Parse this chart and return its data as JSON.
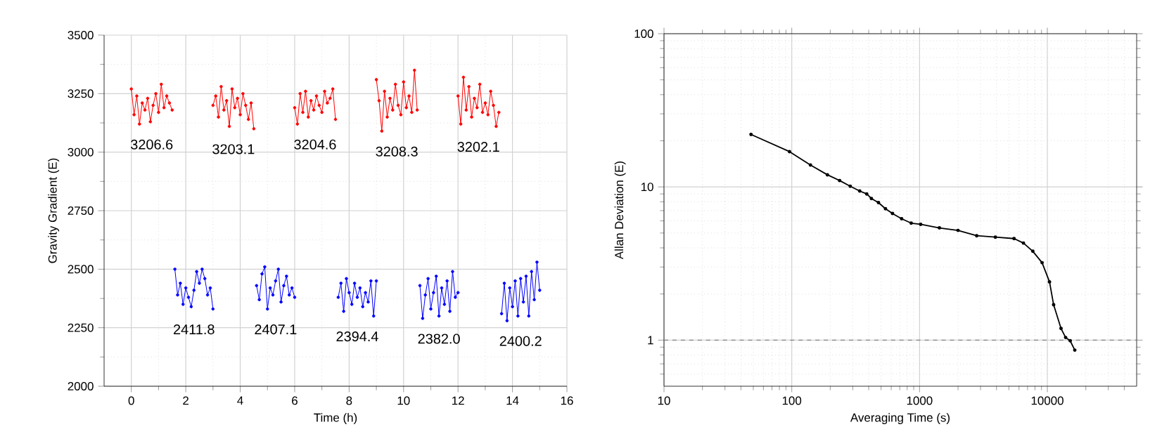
{
  "chart_data": [
    {
      "type": "line",
      "xlabel": "Time (h)",
      "ylabel": "Gravity Gradient (E)",
      "xlim": [
        -1,
        16
      ],
      "ylim": [
        2000,
        3500
      ],
      "xticks": [
        0,
        2,
        4,
        6,
        8,
        10,
        12,
        14,
        16
      ],
      "yticks": [
        2000,
        2250,
        2500,
        2750,
        3000,
        3250,
        3500
      ],
      "grid": true,
      "marker": "circle",
      "series": [
        {
          "color": "#ff0000",
          "x": [
            0.0,
            0.1,
            0.2,
            0.3,
            0.4,
            0.5,
            0.6,
            0.7,
            0.8,
            0.9,
            1.0,
            1.1,
            1.2,
            1.3,
            1.4,
            1.5
          ],
          "values": [
            3270,
            3160,
            3240,
            3120,
            3210,
            3180,
            3230,
            3130,
            3200,
            3250,
            3170,
            3290,
            3190,
            3240,
            3210,
            3180
          ]
        },
        {
          "color": "#ff0000",
          "x": [
            3.0,
            3.1,
            3.2,
            3.3,
            3.4,
            3.5,
            3.6,
            3.7,
            3.8,
            3.9,
            4.0,
            4.1,
            4.2,
            4.3,
            4.4,
            4.5
          ],
          "values": [
            3200,
            3240,
            3150,
            3280,
            3180,
            3220,
            3110,
            3270,
            3190,
            3230,
            3160,
            3250,
            3200,
            3140,
            3210,
            3100
          ]
        },
        {
          "color": "#ff0000",
          "x": [
            6.0,
            6.1,
            6.2,
            6.3,
            6.4,
            6.5,
            6.6,
            6.7,
            6.8,
            6.9,
            7.0,
            7.1,
            7.2,
            7.3,
            7.4,
            7.5
          ],
          "values": [
            3190,
            3120,
            3250,
            3170,
            3260,
            3150,
            3220,
            3180,
            3240,
            3200,
            3170,
            3260,
            3210,
            3230,
            3270,
            3140
          ]
        },
        {
          "color": "#ff0000",
          "x": [
            9.0,
            9.1,
            9.2,
            9.3,
            9.4,
            9.5,
            9.6,
            9.7,
            9.8,
            9.9,
            10.0,
            10.1,
            10.2,
            10.3,
            10.4,
            10.5
          ],
          "values": [
            3310,
            3220,
            3090,
            3260,
            3150,
            3230,
            3180,
            3290,
            3200,
            3160,
            3300,
            3190,
            3240,
            3170,
            3350,
            3180
          ]
        },
        {
          "color": "#ff0000",
          "x": [
            12.0,
            12.1,
            12.2,
            12.3,
            12.4,
            12.5,
            12.6,
            12.7,
            12.8,
            12.9,
            13.0,
            13.1,
            13.2,
            13.3,
            13.4,
            13.5
          ],
          "values": [
            3240,
            3120,
            3320,
            3180,
            3280,
            3150,
            3230,
            3190,
            3290,
            3170,
            3210,
            3160,
            3260,
            3200,
            3110,
            3170
          ]
        },
        {
          "color": "#0000ff",
          "x": [
            1.6,
            1.7,
            1.8,
            1.9,
            2.0,
            2.1,
            2.2,
            2.3,
            2.4,
            2.5,
            2.6,
            2.7,
            2.8,
            2.9,
            3.0
          ],
          "values": [
            2500,
            2390,
            2440,
            2350,
            2420,
            2380,
            2340,
            2410,
            2490,
            2440,
            2500,
            2460,
            2390,
            2420,
            2330
          ]
        },
        {
          "color": "#0000ff",
          "x": [
            4.6,
            4.7,
            4.8,
            4.9,
            5.0,
            5.1,
            5.2,
            5.3,
            5.4,
            5.5,
            5.6,
            5.7,
            5.8,
            5.9,
            6.0
          ],
          "values": [
            2430,
            2370,
            2480,
            2510,
            2330,
            2420,
            2390,
            2450,
            2500,
            2360,
            2430,
            2470,
            2390,
            2420,
            2380
          ]
        },
        {
          "color": "#0000ff",
          "x": [
            7.6,
            7.7,
            7.8,
            7.9,
            8.0,
            8.1,
            8.2,
            8.3,
            8.4,
            8.5,
            8.6,
            8.7,
            8.8,
            8.9,
            9.0
          ],
          "values": [
            2380,
            2440,
            2320,
            2460,
            2400,
            2350,
            2440,
            2380,
            2420,
            2340,
            2400,
            2360,
            2450,
            2300,
            2450
          ]
        },
        {
          "color": "#0000ff",
          "x": [
            10.6,
            10.7,
            10.8,
            10.9,
            11.0,
            11.1,
            11.2,
            11.3,
            11.4,
            11.5,
            11.6,
            11.7,
            11.8,
            11.9,
            12.0
          ],
          "values": [
            2430,
            2290,
            2390,
            2460,
            2330,
            2400,
            2470,
            2300,
            2420,
            2350,
            2450,
            2320,
            2490,
            2380,
            2400
          ]
        },
        {
          "color": "#0000ff",
          "x": [
            13.6,
            13.7,
            13.8,
            13.9,
            14.0,
            14.1,
            14.2,
            14.3,
            14.4,
            14.5,
            14.6,
            14.7,
            14.8,
            14.9,
            15.0
          ],
          "values": [
            2310,
            2440,
            2280,
            2420,
            2340,
            2450,
            2300,
            2460,
            2360,
            2470,
            2300,
            2490,
            2370,
            2530,
            2410
          ]
        }
      ],
      "annotations": [
        "3206.6",
        "3203.1",
        "3204.6",
        "3208.3",
        "3202.1",
        "2411.8",
        "2407.1",
        "2394.4",
        "2382.0",
        "2400.2"
      ]
    },
    {
      "type": "line",
      "xlabel": "Averaging Time (s)",
      "ylabel": "Allan Deviation (E)",
      "log": "xy",
      "xlim": [
        10,
        50000
      ],
      "ylim": [
        0.5,
        100
      ],
      "xticks": [
        10,
        100,
        1000,
        10000
      ],
      "yticks": [
        1,
        10,
        100
      ],
      "grid": true,
      "marker": "circle",
      "series": [
        {
          "color": "#000000",
          "x": [
            48,
            96,
            140,
            190,
            237,
            287,
            340,
            386,
            420,
            477,
            541,
            614,
            724,
            860,
            1020,
            1430,
            2000,
            2800,
            3920,
            5490,
            6500,
            7700,
            9100,
            10400,
            11200,
            12800,
            13900,
            15100,
            16400
          ],
          "values": [
            22,
            17,
            13.9,
            12,
            11,
            10.1,
            9.4,
            9,
            8.4,
            7.9,
            7.2,
            6.7,
            6.2,
            5.8,
            5.7,
            5.4,
            5.2,
            4.8,
            4.7,
            4.6,
            4.3,
            3.8,
            3.2,
            2.4,
            1.7,
            1.19,
            1.04,
            0.99,
            0.86
          ]
        }
      ],
      "ref_lines": [
        {
          "axis": "y",
          "value": 1,
          "color": "#7f7f7f",
          "line_style": "dashed"
        }
      ]
    }
  ]
}
